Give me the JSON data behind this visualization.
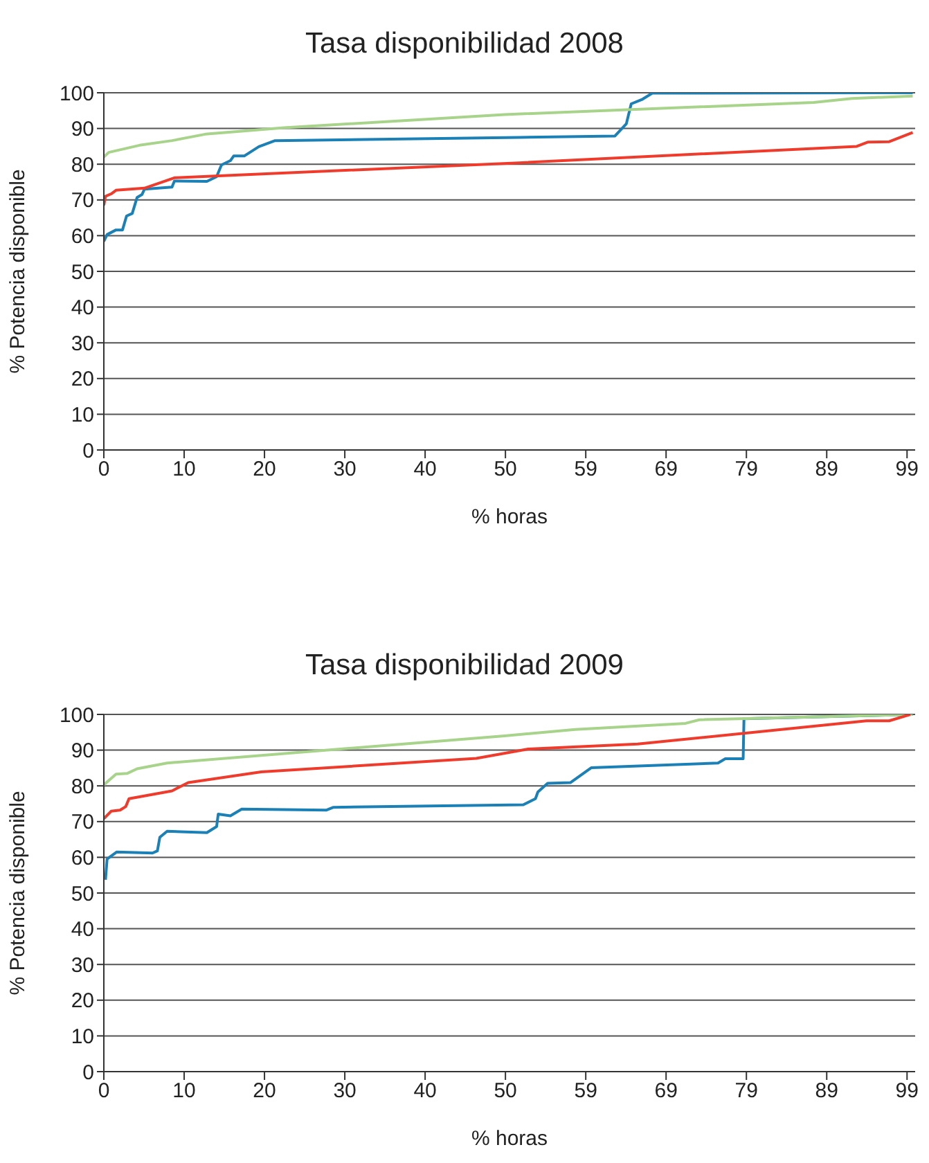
{
  "chart_data": [
    {
      "type": "line",
      "title": "Tasa disponibilidad 2008",
      "xlabel": "% horas",
      "ylabel": "% Potencia disponible",
      "xlim": [
        0,
        100
      ],
      "ylim": [
        0,
        100
      ],
      "xticks": [
        {
          "value": 0,
          "label": "0"
        },
        {
          "value": 9.9,
          "label": "10"
        },
        {
          "value": 19.8,
          "label": "20"
        },
        {
          "value": 29.7,
          "label": "30"
        },
        {
          "value": 39.6,
          "label": "40"
        },
        {
          "value": 49.5,
          "label": "50"
        },
        {
          "value": 59.4,
          "label": "59"
        },
        {
          "value": 69.3,
          "label": "69"
        },
        {
          "value": 79.2,
          "label": "79"
        },
        {
          "value": 89.1,
          "label": "89"
        },
        {
          "value": 99,
          "label": "99"
        }
      ],
      "yticks": [
        0,
        10,
        20,
        30,
        40,
        50,
        60,
        70,
        80,
        90,
        100
      ],
      "grid": "y",
      "legend": false,
      "marker": "none",
      "line_style": "solid",
      "series": [
        {
          "color": "#1a80b6",
          "x": [
            0,
            0.4,
            1.5,
            2.3,
            2.8,
            3.5,
            4.1,
            4.7,
            5.0,
            8.4,
            8.7,
            12.7,
            13.9,
            14.5,
            15.6,
            16.0,
            17.3,
            19.1,
            21.1,
            51.2,
            63.0,
            64.4,
            65.0,
            66.4,
            67.6,
            99.7
          ],
          "values": [
            58.4,
            60.3,
            61.6,
            61.6,
            65.5,
            66.2,
            70.7,
            71.5,
            73,
            73.6,
            75.3,
            75.2,
            76.5,
            79.8,
            81,
            82.3,
            82.3,
            84.9,
            86.6,
            87.5,
            87.9,
            91.3,
            96.9,
            98.2,
            99.9,
            100
          ]
        },
        {
          "color": "#a8d38a",
          "x": [
            0,
            0.6,
            4.4,
            8.4,
            12.5,
            22.2,
            49.4,
            87.5,
            92.2,
            99.7
          ],
          "values": [
            82,
            83.3,
            85.3,
            86.6,
            88.4,
            90.2,
            93.9,
            97.3,
            98.4,
            99.1
          ]
        },
        {
          "color": "#ef3b2c",
          "x": [
            0,
            0.2,
            0.9,
            1.5,
            5.0,
            8.7,
            51.2,
            92.8,
            94.2,
            96.8,
            99.7
          ],
          "values": [
            68.5,
            71,
            71.7,
            72.7,
            73.3,
            76.2,
            80.4,
            85,
            86.2,
            86.3,
            88.9
          ]
        }
      ]
    },
    {
      "type": "line",
      "title": "Tasa disponibilidad 2009",
      "xlabel": "% horas",
      "ylabel": "% Potencia disponible",
      "xlim": [
        0,
        100
      ],
      "ylim": [
        0,
        100
      ],
      "xticks": [
        {
          "value": 0,
          "label": "0"
        },
        {
          "value": 9.9,
          "label": "10"
        },
        {
          "value": 19.8,
          "label": "20"
        },
        {
          "value": 29.7,
          "label": "30"
        },
        {
          "value": 39.6,
          "label": "40"
        },
        {
          "value": 49.5,
          "label": "50"
        },
        {
          "value": 59.4,
          "label": "59"
        },
        {
          "value": 69.3,
          "label": "69"
        },
        {
          "value": 79.2,
          "label": "79"
        },
        {
          "value": 89.1,
          "label": "89"
        },
        {
          "value": 99,
          "label": "99"
        }
      ],
      "yticks": [
        0,
        10,
        20,
        30,
        40,
        50,
        60,
        70,
        80,
        90,
        100
      ],
      "grid": "y",
      "legend": false,
      "marker": "none",
      "line_style": "solid",
      "series": [
        {
          "color": "#1a80b6",
          "x": [
            0.2,
            0.4,
            1.6,
            6.0,
            6.6,
            6.9,
            7.8,
            12.7,
            13.9,
            14.1,
            15.6,
            17.0,
            27.4,
            28.3,
            51.7,
            53.2,
            53.5,
            54.7,
            57.5,
            60.1,
            75.7,
            76.6,
            78.8,
            78.9,
            99.7
          ],
          "values": [
            53.7,
            59.5,
            61.5,
            61.2,
            61.8,
            65.6,
            67.3,
            66.9,
            68.6,
            72.1,
            71.6,
            73.5,
            73.2,
            74,
            74.7,
            76.4,
            78.3,
            80.7,
            80.9,
            85.1,
            86.4,
            87.6,
            87.6,
            98.8,
            100
          ]
        },
        {
          "color": "#a8d38a",
          "x": [
            0,
            1.5,
            2.9,
            4.1,
            7.8,
            49.4,
            58.1,
            71.7,
            73.4,
            99.7
          ],
          "values": [
            80.3,
            83.3,
            83.5,
            84.8,
            86.4,
            94,
            95.8,
            97.5,
            98.5,
            100
          ]
        },
        {
          "color": "#ef3b2c",
          "x": [
            0,
            0.9,
            2.0,
            2.7,
            3.1,
            8.4,
            10.4,
            19.4,
            45.9,
            52.3,
            65.8,
            94.0,
            96.8,
            99.4
          ],
          "values": [
            70.8,
            72.9,
            73.2,
            74.2,
            76.4,
            78.6,
            80.9,
            83.9,
            87.7,
            90.3,
            91.7,
            98.2,
            98.2,
            100
          ]
        }
      ]
    }
  ]
}
